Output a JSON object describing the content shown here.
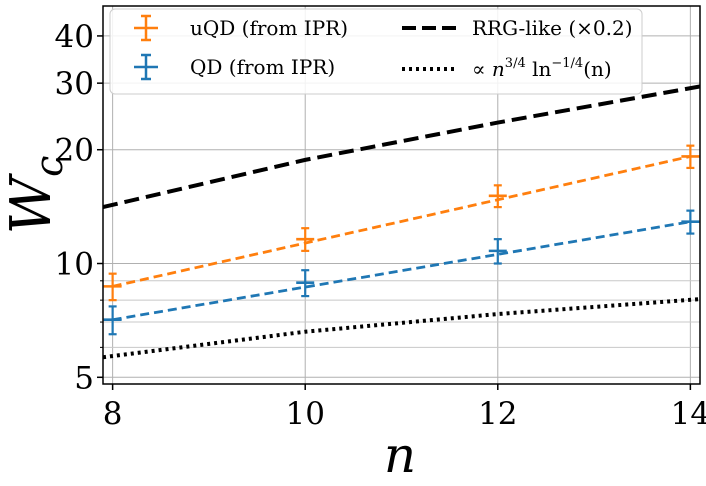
{
  "chart_data": {
    "type": "line",
    "title": "",
    "xlabel": "n",
    "ylabel_main": "W",
    "ylabel_sub": "c",
    "xscale": "linear",
    "yscale": "log",
    "xlim": [
      7.9,
      14.1
    ],
    "ylim": [
      4.8,
      48
    ],
    "xticks": [
      8,
      10,
      12,
      14
    ],
    "xtick_labels": [
      "8",
      "10",
      "12",
      "14"
    ],
    "yticks": [
      5,
      10,
      20,
      30,
      40
    ],
    "ytick_labels": [
      "5",
      "10",
      "20",
      "30",
      "40"
    ],
    "yminor_ticks": [
      6,
      7,
      8,
      9
    ],
    "grid": true,
    "legend_position": "top",
    "series": [
      {
        "name": "uQD (from IPR)",
        "legend_label": "uQD (from IPR)",
        "color": "#ff7f0e",
        "kind": "errorbar_with_dashed_fit",
        "x": [
          8,
          10,
          12,
          14
        ],
        "y": [
          8.7,
          11.6,
          15.1,
          19.2
        ],
        "yerr": [
          0.7,
          0.8,
          1.0,
          1.3
        ],
        "fit_x": [
          8,
          14
        ],
        "fit_y": [
          8.7,
          19.2
        ]
      },
      {
        "name": "QD (from IPR)",
        "legend_label": "QD (from IPR)",
        "color": "#1f77b4",
        "kind": "errorbar_with_dashed_fit",
        "x": [
          8,
          10,
          12,
          14
        ],
        "y": [
          7.1,
          8.9,
          10.8,
          12.9
        ],
        "yerr": [
          0.6,
          0.7,
          0.8,
          0.9
        ],
        "fit_x": [
          8,
          14
        ],
        "fit_y": [
          7.1,
          12.9
        ]
      },
      {
        "name": "RRG-like (×0.2)",
        "legend_label": "RRG-like (×0.2)",
        "color": "#000000",
        "kind": "dashed_line",
        "x": [
          7.9,
          10,
          12,
          14.1
        ],
        "y": [
          14.1,
          18.8,
          23.6,
          29.4
        ]
      },
      {
        "name": "∝ n^{3/4} ln^{-1/4}(n)",
        "legend_prefix": "∝ ",
        "legend_base": "n",
        "legend_exp1": "3/4",
        "legend_ln": " ln",
        "legend_exp2": "−1/4",
        "legend_arg": "(n)",
        "color": "#000000",
        "kind": "dotted_line",
        "x": [
          7.9,
          10,
          12,
          14.1
        ],
        "y": [
          5.65,
          6.6,
          7.35,
          8.05
        ]
      }
    ]
  }
}
